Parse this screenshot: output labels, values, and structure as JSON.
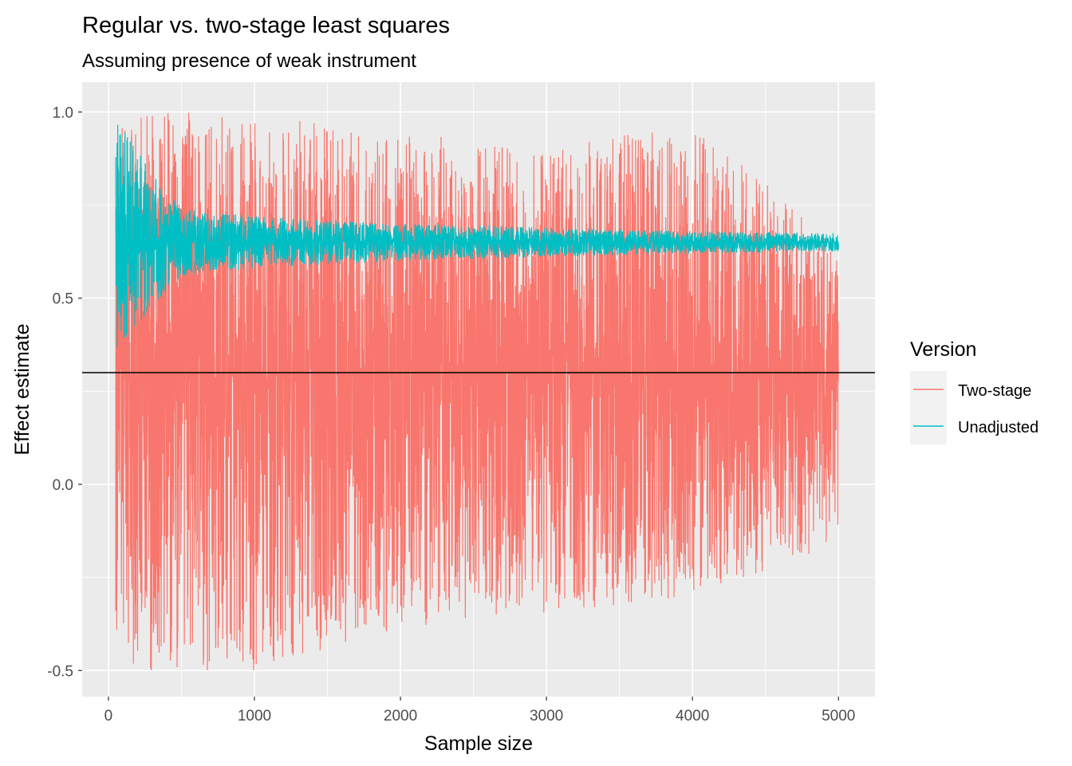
{
  "chart_data": {
    "type": "line",
    "title": "Regular vs. two-stage least squares",
    "subtitle": "Assuming presence of weak instrument",
    "xlabel": "Sample size",
    "ylabel": "Effect estimate",
    "xlim": [
      -180,
      5250
    ],
    "ylim": [
      -0.57,
      1.08
    ],
    "x_ticks": [
      0,
      1000,
      2000,
      3000,
      4000,
      5000
    ],
    "x_tick_labels": [
      "0",
      "1000",
      "2000",
      "3000",
      "4000",
      "5000"
    ],
    "y_ticks": [
      -0.5,
      0.0,
      0.5,
      1.0
    ],
    "y_tick_labels": [
      "-0.5",
      "0.0",
      "0.5",
      "1.0"
    ],
    "grid": true,
    "background": "#ebebeb",
    "reference_line": {
      "y": 0.3,
      "color": "#000000"
    },
    "legend": {
      "title": "Version",
      "placement": "right",
      "entries": [
        "Two-stage",
        "Unadjusted"
      ]
    },
    "series": [
      {
        "name": "Two-stage",
        "color": "#F8766D",
        "x_range": [
          50,
          5000
        ],
        "x_step": 1,
        "center": 0.3,
        "max": 1.0,
        "min": -0.5,
        "envelope": [
          {
            "x": 50,
            "low": -0.5,
            "high": 1.0
          },
          {
            "x": 1000,
            "low": -0.5,
            "high": 1.0
          },
          {
            "x": 2000,
            "low": -0.4,
            "high": 0.95
          },
          {
            "x": 3000,
            "low": -0.35,
            "high": 0.9
          },
          {
            "x": 4000,
            "low": -0.3,
            "high": 0.98
          },
          {
            "x": 5000,
            "low": -0.16,
            "high": 0.64
          }
        ]
      },
      {
        "name": "Unadjusted",
        "color": "#00BFC4",
        "x_range": [
          50,
          5000
        ],
        "x_step": 1,
        "center": 0.65,
        "max": 0.98,
        "min": 0.36,
        "envelope": [
          {
            "x": 50,
            "low": 0.36,
            "high": 0.98
          },
          {
            "x": 500,
            "low": 0.56,
            "high": 0.74
          },
          {
            "x": 1000,
            "low": 0.58,
            "high": 0.72
          },
          {
            "x": 2000,
            "low": 0.6,
            "high": 0.7
          },
          {
            "x": 3000,
            "low": 0.61,
            "high": 0.69
          },
          {
            "x": 4000,
            "low": 0.62,
            "high": 0.68
          },
          {
            "x": 5000,
            "low": 0.625,
            "high": 0.675
          }
        ]
      }
    ]
  }
}
